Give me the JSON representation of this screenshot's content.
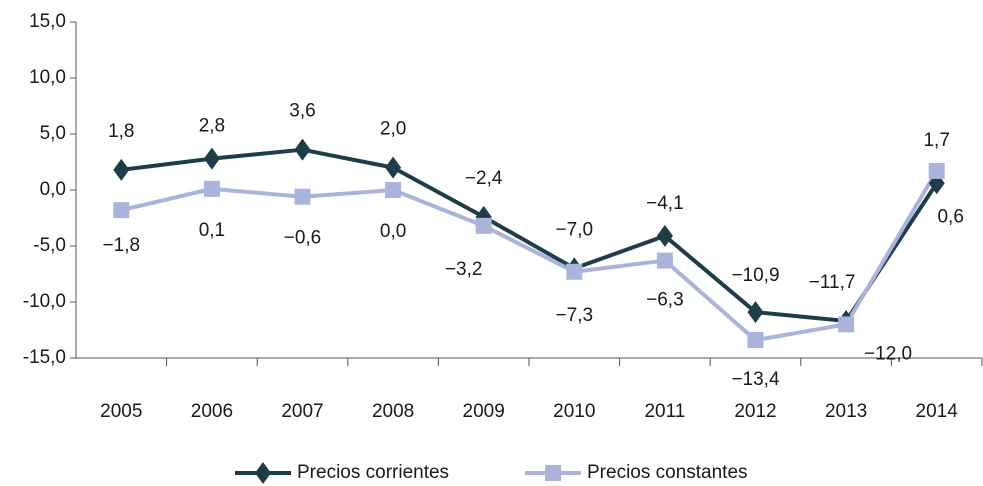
{
  "chart_data": {
    "type": "line",
    "categories": [
      "2005",
      "2006",
      "2007",
      "2008",
      "2009",
      "2010",
      "2011",
      "2012",
      "2013",
      "2014"
    ],
    "series": [
      {
        "name": "Precios corrientes",
        "color": "#1e3d47",
        "marker": "diamond",
        "values": [
          1.8,
          2.8,
          3.6,
          2.0,
          -2.4,
          -7.0,
          -4.1,
          -10.9,
          -11.7,
          0.6
        ],
        "value_labels": [
          "1,8",
          "2,8",
          "3,6",
          "2,0",
          "−2,4",
          "−7,0",
          "−4,1",
          "−10,9",
          "−11,7",
          "0,6"
        ]
      },
      {
        "name": "Precios constantes",
        "color": "#aab4db",
        "marker": "square",
        "values": [
          -1.8,
          0.1,
          -0.6,
          0.0,
          -3.2,
          -7.3,
          -6.3,
          -13.4,
          -12.0,
          1.7
        ],
        "value_labels": [
          "−1,8",
          "0,1",
          "−0,6",
          "0,0",
          "−3,2",
          "−7,3",
          "−6,3",
          "−13,4",
          "−12,0",
          "1,7"
        ]
      }
    ],
    "ylim": [
      -15,
      15
    ],
    "yticks": [
      {
        "value": -15,
        "label": "-15,0"
      },
      {
        "value": -10,
        "label": "-10,0"
      },
      {
        "value": -5,
        "label": "-5,0"
      },
      {
        "value": 0,
        "label": "0,0"
      },
      {
        "value": 5,
        "label": "5,0"
      },
      {
        "value": 10,
        "label": "10,0"
      },
      {
        "value": 15,
        "label": "15,0"
      }
    ],
    "grid": false,
    "legend": "bottom"
  }
}
